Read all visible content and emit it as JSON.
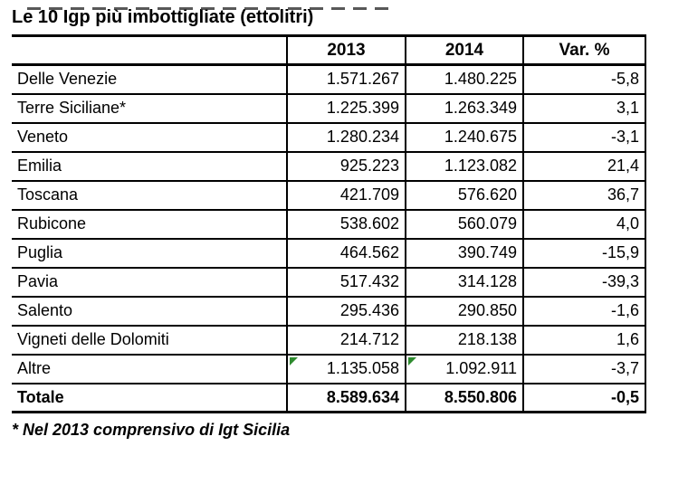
{
  "title": "Le 10 Igp più imbottigliate (ettolitri)",
  "footnote": "* Nel 2013 comprensivo di Igt Sicilia",
  "colors": {
    "border": "#000000",
    "text": "#000000",
    "flag_green": "#2e8b2f",
    "background": "#ffffff"
  },
  "table": {
    "columns": [
      "",
      "2013",
      "2014",
      "Var. %"
    ],
    "rows": [
      {
        "label": "Delle Venezie",
        "v2013": "1.571.267",
        "v2014": "1.480.225",
        "var": "-5,8",
        "flags": [],
        "bold": false
      },
      {
        "label": "Terre Siciliane*",
        "v2013": "1.225.399",
        "v2014": "1.263.349",
        "var": "3,1",
        "flags": [],
        "bold": false
      },
      {
        "label": "Veneto",
        "v2013": "1.280.234",
        "v2014": "1.240.675",
        "var": "-3,1",
        "flags": [],
        "bold": false
      },
      {
        "label": "Emilia",
        "v2013": "925.223",
        "v2014": "1.123.082",
        "var": "21,4",
        "flags": [],
        "bold": false
      },
      {
        "label": "Toscana",
        "v2013": "421.709",
        "v2014": "576.620",
        "var": "36,7",
        "flags": [],
        "bold": false
      },
      {
        "label": "Rubicone",
        "v2013": "538.602",
        "v2014": "560.079",
        "var": "4,0",
        "flags": [],
        "bold": false
      },
      {
        "label": "Puglia",
        "v2013": "464.562",
        "v2014": "390.749",
        "var": "-15,9",
        "flags": [],
        "bold": false
      },
      {
        "label": "Pavia",
        "v2013": "517.432",
        "v2014": "314.128",
        "var": "-39,3",
        "flags": [],
        "bold": false
      },
      {
        "label": "Salento",
        "v2013": "295.436",
        "v2014": "290.850",
        "var": "-1,6",
        "flags": [],
        "bold": false
      },
      {
        "label": "Vigneti delle Dolomiti",
        "v2013": "214.712",
        "v2014": "218.138",
        "var": "1,6",
        "flags": [],
        "bold": false
      },
      {
        "label": "Altre",
        "v2013": "1.135.058",
        "v2014": "1.092.911",
        "var": "-3,7",
        "flags": [
          "2013",
          "2014"
        ],
        "bold": false
      },
      {
        "label": "Totale",
        "v2013": "8.589.634",
        "v2014": "8.550.806",
        "var": "-0,5",
        "flags": [],
        "bold": true
      }
    ]
  },
  "chart_data": {
    "type": "table",
    "title": "Le 10 Igp più imbottigliate (ettolitri)",
    "categories": [
      "Delle Venezie",
      "Terre Siciliane*",
      "Veneto",
      "Emilia",
      "Toscana",
      "Rubicone",
      "Puglia",
      "Pavia",
      "Salento",
      "Vigneti delle Dolomiti",
      "Altre",
      "Totale"
    ],
    "series": [
      {
        "name": "2013",
        "values": [
          1571267,
          1225399,
          1280234,
          925223,
          421709,
          538602,
          464562,
          517432,
          295436,
          214712,
          1135058,
          8589634
        ]
      },
      {
        "name": "2014",
        "values": [
          1480225,
          1263349,
          1240675,
          1123082,
          576620,
          560079,
          390749,
          314128,
          290850,
          218138,
          1092911,
          8550806
        ]
      },
      {
        "name": "Var. %",
        "values": [
          -5.8,
          3.1,
          -3.1,
          21.4,
          36.7,
          4.0,
          -15.9,
          -39.3,
          -1.6,
          1.6,
          -3.7,
          -0.5
        ]
      }
    ],
    "footnote": "* Nel 2013 comprensivo di Igt Sicilia"
  }
}
